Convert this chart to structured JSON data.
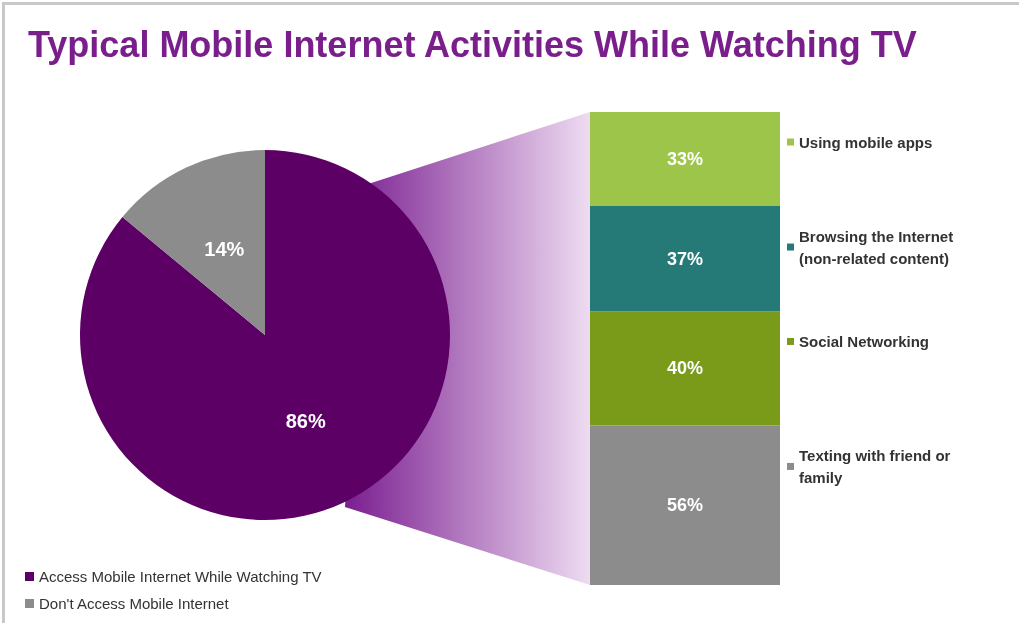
{
  "chart_data": [
    {
      "type": "pie",
      "title": "Typical Mobile Internet Activities While Watching TV",
      "categories": [
        "Access Mobile Internet While Watching TV",
        "Don't Access Mobile Internet"
      ],
      "values": [
        86,
        14
      ],
      "value_labels": [
        "86%",
        "14%"
      ],
      "colors": [
        "#5c0066",
        "#8c8c8c"
      ],
      "legend": "bottom left"
    },
    {
      "type": "bar",
      "stacked": true,
      "categories": [
        null
      ],
      "legend": "right",
      "series": [
        {
          "name": "Texting with friend or family",
          "color": "#8c8c8c",
          "values": [
            56
          ],
          "value_labels": [
            "56%"
          ]
        },
        {
          "name": "Social Networking",
          "color": "#7a9a1a",
          "values": [
            40
          ],
          "value_labels": [
            "40%"
          ]
        },
        {
          "name": "Browsing the Internet (non-related content)",
          "color": "#257a78",
          "values": [
            37
          ],
          "value_labels": [
            "37%"
          ]
        },
        {
          "name": "Using mobile apps",
          "color": "#9cc54a",
          "values": [
            33
          ],
          "value_labels": [
            "33%"
          ]
        }
      ]
    }
  ]
}
